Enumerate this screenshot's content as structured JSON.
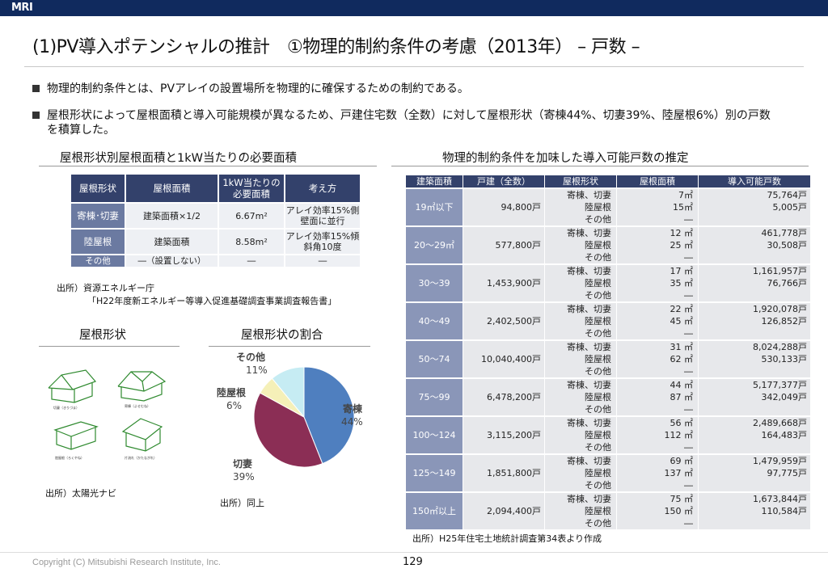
{
  "header": {
    "logo": "MRI"
  },
  "title": "(1)PV導入ポテンシャルの推計　①物理的制約条件の考慮（2013年） – 戸数 –",
  "bullets": [
    "物理的制約条件とは、PVアレイの設置場所を物理的に確保するための制約である。",
    "屋根形状によって屋根面積と導入可能規模が異なるため、戸建住宅数（全数）に対して屋根形状（寄棟44%、切妻39%、陸屋根6%）別の戸数を積算した。"
  ],
  "left_section": {
    "heading": "屋根形状別屋根面積と1kW当たりの必要面積",
    "table": {
      "headers": [
        "屋根形状",
        "屋根面積",
        "1kW当たりの必要面積",
        "考え方"
      ],
      "rows": [
        [
          "寄棟･切妻",
          "建築面積×1/2",
          "6.67m²",
          "アレイ効率15%側壁面に並行"
        ],
        [
          "陸屋根",
          "建築面積",
          "8.58m²",
          "アレイ効率15%傾斜角10度"
        ],
        [
          "その他",
          "―（設置しない）",
          "―",
          "―"
        ]
      ]
    },
    "source_1": "出所）資源エネルギー庁",
    "source_2": "「H22年度新エネルギー等導入促進基礎調査事業調査報告書」"
  },
  "roof_shapes": {
    "heading": "屋根形状",
    "labels": [
      "切妻（きりづま）",
      "寄棟（よせむね）",
      "陸屋根（ろくやね）",
      "片流れ（かたながれ）"
    ],
    "source": "出所）太陽光ナビ"
  },
  "pie": {
    "heading": "屋根形状の割合",
    "slices": [
      {
        "name": "寄棟",
        "label": "44%",
        "value": 44,
        "color": "#4f7fbf"
      },
      {
        "name": "切妻",
        "label": "39%",
        "value": 39,
        "color": "#8b2e55"
      },
      {
        "name": "陸屋根",
        "label": "6%",
        "value": 6,
        "color": "#f5f0b8"
      },
      {
        "name": "その他",
        "label": "11%",
        "value": 11,
        "color": "#c6ecf3"
      }
    ],
    "source": "出所）同上"
  },
  "right_section": {
    "heading": "物理的制約条件を加味した導入可能戸数の推定",
    "headers": [
      "建築面積",
      "戸建（全数）",
      "屋根形状",
      "屋根面積",
      "導入可能戸数"
    ],
    "shapes": [
      "寄棟、切妻",
      "陸屋根",
      "その他"
    ],
    "rows": [
      {
        "range": "19㎡以下",
        "total": "94,800戸",
        "areas": [
          "7㎡",
          "15㎡",
          "―"
        ],
        "pots": [
          "75,764戸",
          "5,005戸",
          ""
        ]
      },
      {
        "range": "20～29㎡",
        "total": "577,800戸",
        "areas": [
          "12 ㎡",
          "25 ㎡",
          "―"
        ],
        "pots": [
          "461,778戸",
          "30,508戸",
          ""
        ]
      },
      {
        "range": "30～39",
        "total": "1,453,900戸",
        "areas": [
          "17 ㎡",
          "35 ㎡",
          "―"
        ],
        "pots": [
          "1,161,957戸",
          "76,766戸",
          ""
        ]
      },
      {
        "range": "40～49",
        "total": "2,402,500戸",
        "areas": [
          "22 ㎡",
          "45 ㎡",
          "―"
        ],
        "pots": [
          "1,920,078戸",
          "126,852戸",
          ""
        ]
      },
      {
        "range": "50～74",
        "total": "10,040,400戸",
        "areas": [
          "31 ㎡",
          "62 ㎡",
          "―"
        ],
        "pots": [
          "8,024,288戸",
          "530,133戸",
          ""
        ]
      },
      {
        "range": "75～99",
        "total": "6,478,200戸",
        "areas": [
          "44 ㎡",
          "87 ㎡",
          "―"
        ],
        "pots": [
          "5,177,377戸",
          "342,049戸",
          ""
        ]
      },
      {
        "range": "100～124",
        "total": "3,115,200戸",
        "areas": [
          "56 ㎡",
          "112 ㎡",
          "―"
        ],
        "pots": [
          "2,489,668戸",
          "164,483戸",
          ""
        ]
      },
      {
        "range": "125～149",
        "total": "1,851,800戸",
        "areas": [
          "69 ㎡",
          "137 ㎡",
          "―"
        ],
        "pots": [
          "1,479,959戸",
          "97,775戸",
          ""
        ]
      },
      {
        "range": "150㎡以上",
        "total": "2,094,400戸",
        "areas": [
          "75 ㎡",
          "150 ㎡",
          "―"
        ],
        "pots": [
          "1,673,844戸",
          "110,584戸",
          ""
        ]
      }
    ],
    "source": "出所）H25年住宅土地統計調査第34表より作成"
  },
  "footer": {
    "copyright": "Copyright (C) Mitsubishi Research Institute, Inc.",
    "page": "129"
  }
}
